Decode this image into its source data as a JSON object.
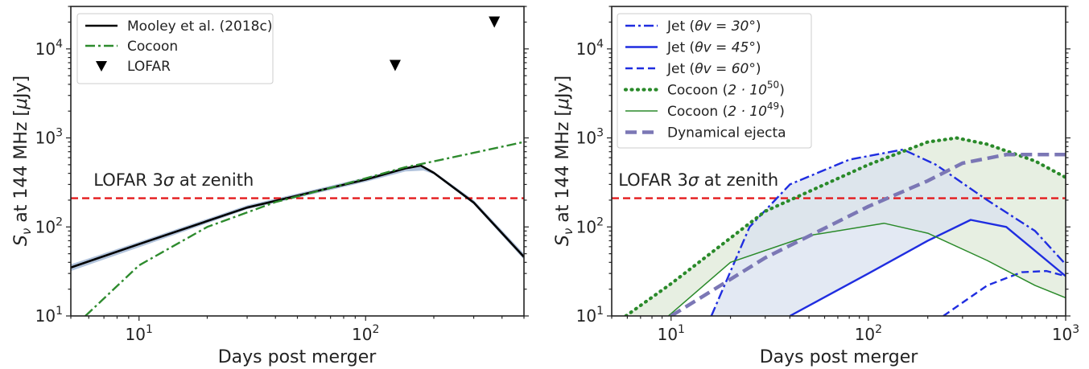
{
  "chart_data": [
    {
      "type": "line",
      "xlabel": "Days post merger",
      "ylabel": "S_ν at 144 MHz [μJy]",
      "xscale": "log",
      "yscale": "log",
      "xlim": [
        5,
        500
      ],
      "ylim": [
        10,
        30000
      ],
      "x_ticks": [
        {
          "v": 10,
          "e": "1"
        },
        {
          "v": 100,
          "e": "2"
        }
      ],
      "y_ticks": [
        {
          "v": 10,
          "e": "1"
        },
        {
          "v": 100,
          "e": "2"
        },
        {
          "v": 1000,
          "e": "3"
        },
        {
          "v": 10000,
          "e": "4"
        }
      ],
      "hline": {
        "y": 210,
        "color": "#e41a1c",
        "label": "LOFAR 3σ at zenith",
        "label_x": 6.3,
        "label_y": 290
      },
      "band": {
        "color": "#a9bcd8",
        "upper": [
          [
            5,
            38
          ],
          [
            10,
            68
          ],
          [
            30,
            175
          ],
          [
            100,
            360
          ],
          [
            150,
            470
          ],
          [
            180,
            485
          ],
          [
            200,
            420
          ],
          [
            300,
            200
          ],
          [
            500,
            50
          ]
        ],
        "lower": [
          [
            5,
            32
          ],
          [
            10,
            59
          ],
          [
            30,
            158
          ],
          [
            100,
            320
          ],
          [
            150,
            420
          ],
          [
            180,
            430
          ],
          [
            200,
            390
          ],
          [
            300,
            180
          ],
          [
            500,
            43
          ]
        ]
      },
      "series": [
        {
          "name": "Mooley et al. (2018c)",
          "style": "solid",
          "color": "#000000",
          "width": 2.6,
          "points": [
            [
              5,
              35
            ],
            [
              10,
              64
            ],
            [
              30,
              165
            ],
            [
              100,
              340
            ],
            [
              150,
              455
            ],
            [
              175,
              490
            ],
            [
              200,
              405
            ],
            [
              300,
              188
            ],
            [
              500,
              46
            ]
          ]
        },
        {
          "name": "Cocoon",
          "style": "dashdot",
          "color": "#2e8b2e",
          "width": 2.4,
          "points": [
            [
              5.8,
              10
            ],
            [
              10,
              37
            ],
            [
              20,
              100
            ],
            [
              40,
              190
            ],
            [
              80,
              300
            ],
            [
              150,
              470
            ],
            [
              170,
              500
            ],
            [
              300,
              680
            ],
            [
              500,
              900
            ]
          ]
        },
        {
          "name": "LOFAR",
          "style": "marker",
          "color": "#000000",
          "points": [
            [
              135,
              6500
            ],
            [
              370,
              20000
            ]
          ]
        }
      ]
    },
    {
      "type": "line",
      "xlabel": "Days post merger",
      "ylabel": "S_ν at 144 MHz [μJy]",
      "xscale": "log",
      "yscale": "log",
      "xlim": [
        5,
        1000
      ],
      "ylim": [
        10,
        30000
      ],
      "x_ticks": [
        {
          "v": 10,
          "e": "1"
        },
        {
          "v": 100,
          "e": "2"
        },
        {
          "v": 1000,
          "e": "3"
        }
      ],
      "y_ticks": [
        {
          "v": 10,
          "e": "1"
        },
        {
          "v": 100,
          "e": "2"
        },
        {
          "v": 1000,
          "e": "3"
        },
        {
          "v": 10000,
          "e": "4"
        }
      ],
      "hline": {
        "y": 210,
        "color": "#e41a1c",
        "label": "LOFAR 3σ at zenith",
        "label_x": 5.4,
        "label_y": 290
      },
      "shades": [
        {
          "color": "#dfe9d8",
          "upper": [
            [
              5.9,
              10
            ],
            [
              10,
              23
            ],
            [
              30,
              150
            ],
            [
              100,
              500
            ],
            [
              200,
              900
            ],
            [
              280,
              1000
            ],
            [
              400,
              850
            ],
            [
              700,
              550
            ],
            [
              1000,
              360
            ]
          ],
          "lower": [
            [
              9.7,
              10
            ],
            [
              20,
              40
            ],
            [
              50,
              80
            ],
            [
              120,
              110
            ],
            [
              200,
              85
            ],
            [
              400,
              42
            ],
            [
              700,
              22
            ],
            [
              1000,
              16
            ]
          ]
        },
        {
          "color": "#d9e1ef",
          "upper": [
            [
              16,
              10
            ],
            [
              25,
              100
            ],
            [
              40,
              300
            ],
            [
              80,
              570
            ],
            [
              150,
              740
            ],
            [
              220,
              500
            ],
            [
              400,
              200
            ],
            [
              700,
              90
            ],
            [
              1000,
              38
            ]
          ],
          "lower": [
            [
              40,
              10
            ],
            [
              100,
              30
            ],
            [
              200,
              70
            ],
            [
              330,
              120
            ],
            [
              500,
              100
            ],
            [
              1000,
              28
            ]
          ]
        }
      ],
      "series": [
        {
          "name": "Jet (θv = 30°)",
          "legend_main": "Jet (",
          "legend_math": "θv = 30°",
          "legend_tail": ")",
          "style": "dashdot",
          "color": "#1f2de0",
          "width": 2.4,
          "points": [
            [
              16,
              10
            ],
            [
              25,
              100
            ],
            [
              40,
              300
            ],
            [
              80,
              570
            ],
            [
              150,
              740
            ],
            [
              220,
              500
            ],
            [
              400,
              200
            ],
            [
              700,
              90
            ],
            [
              1000,
              38
            ]
          ]
        },
        {
          "name": "Jet (θv = 45°)",
          "legend_main": "Jet (",
          "legend_math": "θv = 45°",
          "legend_tail": ")",
          "style": "solid",
          "color": "#1f2de0",
          "width": 2.4,
          "points": [
            [
              40,
              10
            ],
            [
              100,
              30
            ],
            [
              200,
              70
            ],
            [
              330,
              120
            ],
            [
              500,
              100
            ],
            [
              1000,
              28
            ]
          ]
        },
        {
          "name": "Jet (θv = 60°)",
          "legend_main": "Jet (",
          "legend_math": "θv = 60°",
          "legend_tail": ")",
          "style": "dashed",
          "color": "#1f2de0",
          "width": 2.4,
          "points": [
            [
              240,
              10
            ],
            [
              400,
              22
            ],
            [
              600,
              31
            ],
            [
              800,
              32
            ],
            [
              1000,
              28
            ]
          ]
        },
        {
          "name": "Cocoon (2·10^50)",
          "legend_main": "Cocoon (",
          "legend_math": "2 · 10",
          "legend_sup": "50",
          "legend_tail": ")",
          "style": "dotted",
          "color": "#2a8a2a",
          "width": 4.2,
          "points": [
            [
              5.9,
              10
            ],
            [
              10,
              23
            ],
            [
              30,
              150
            ],
            [
              100,
              500
            ],
            [
              200,
              900
            ],
            [
              280,
              1000
            ],
            [
              400,
              850
            ],
            [
              700,
              550
            ],
            [
              1000,
              360
            ]
          ]
        },
        {
          "name": "Cocoon (2·10^49)",
          "legend_main": "Cocoon (",
          "legend_math": "2 · 10",
          "legend_sup": "49",
          "legend_tail": ")",
          "style": "solid",
          "color": "#2a8a2a",
          "width": 1.5,
          "points": [
            [
              9.7,
              10
            ],
            [
              20,
              40
            ],
            [
              50,
              80
            ],
            [
              120,
              110
            ],
            [
              200,
              85
            ],
            [
              400,
              42
            ],
            [
              700,
              22
            ],
            [
              1000,
              16
            ]
          ]
        },
        {
          "name": "Dynamical ejecta",
          "legend_main": "Dynamical ejecta",
          "style": "dashed-thick",
          "color": "#7b77b5",
          "width": 4.5,
          "points": [
            [
              10,
              10
            ],
            [
              30,
              45
            ],
            [
              100,
              170
            ],
            [
              200,
              330
            ],
            [
              300,
              520
            ],
            [
              500,
              650
            ],
            [
              1000,
              650
            ]
          ]
        }
      ]
    }
  ]
}
